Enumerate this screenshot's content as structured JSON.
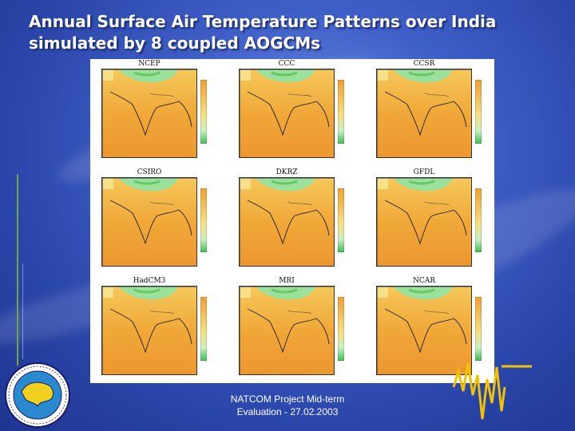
{
  "slide": {
    "title_line1": "Annual Surface Air Temperature Patterns over India",
    "title_line2": "simulated by 8 coupled AOGCMs",
    "footer_line1": "NATCOM Project Mid-term",
    "footer_line2": "Evaluation - 27.02.2003"
  },
  "panels": [
    {
      "label": "NCEP"
    },
    {
      "label": "CCC"
    },
    {
      "label": "CCSR"
    },
    {
      "label": "CSIRO"
    },
    {
      "label": "DKRZ"
    },
    {
      "label": "GFDL"
    },
    {
      "label": "HadCM3"
    },
    {
      "label": "MRI"
    },
    {
      "label": "NCAR"
    }
  ],
  "colors": {
    "background": "#3f5fc8",
    "warm": "#f0a030",
    "cool": "#9be09b",
    "accent_line": "#f2c200"
  }
}
